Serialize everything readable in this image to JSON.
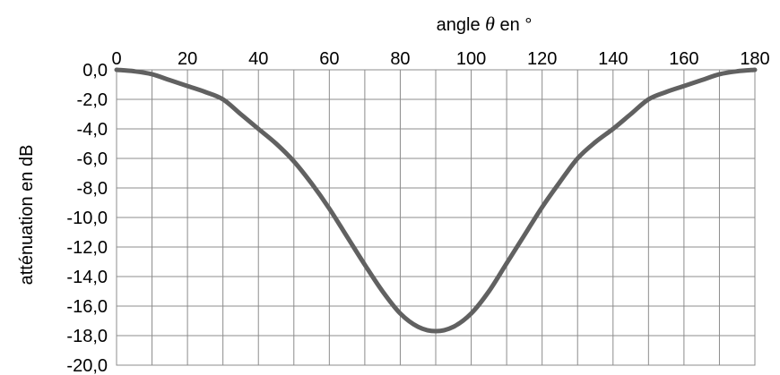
{
  "chart_data": {
    "type": "line",
    "xlabel_prefix": "angle ",
    "xlabel_symbol": "θ",
    "xlabel_suffix": " en °",
    "ylabel": "atténuation en dB",
    "xlim": [
      0,
      180
    ],
    "ylim": [
      -20,
      0
    ],
    "x_ticks": [
      0,
      20,
      40,
      60,
      80,
      100,
      120,
      140,
      160,
      180
    ],
    "y_ticks": [
      "0,0",
      "-2,0",
      "-4,0",
      "-6,0",
      "-8,0",
      "-10,0",
      "-12,0",
      "-14,0",
      "-16,0",
      "-18,0",
      "-20,0"
    ],
    "x_axis_position": "top",
    "grid": true,
    "grid_x_step": 10,
    "grid_y_step": 2,
    "line_color": "#616161",
    "grid_color": "#8c8c8c",
    "series": [
      {
        "x": [
          0,
          5,
          10,
          15,
          20,
          25,
          30,
          35,
          40,
          45,
          50,
          55,
          60,
          65,
          70,
          75,
          80,
          85,
          90,
          95,
          100,
          105,
          110,
          115,
          120,
          125,
          130,
          135,
          140,
          145,
          150,
          155,
          160,
          165,
          170,
          175,
          180
        ],
        "y": [
          0.0,
          -0.1,
          -0.3,
          -0.7,
          -1.1,
          -1.5,
          -2.0,
          -3.0,
          -4.0,
          -5.0,
          -6.2,
          -7.7,
          -9.4,
          -11.3,
          -13.2,
          -15.0,
          -16.5,
          -17.4,
          -17.7,
          -17.4,
          -16.5,
          -15.0,
          -13.1,
          -11.2,
          -9.3,
          -7.6,
          -6.0,
          -4.9,
          -4.0,
          -3.0,
          -2.0,
          -1.5,
          -1.1,
          -0.7,
          -0.3,
          -0.1,
          0.0
        ]
      }
    ]
  }
}
